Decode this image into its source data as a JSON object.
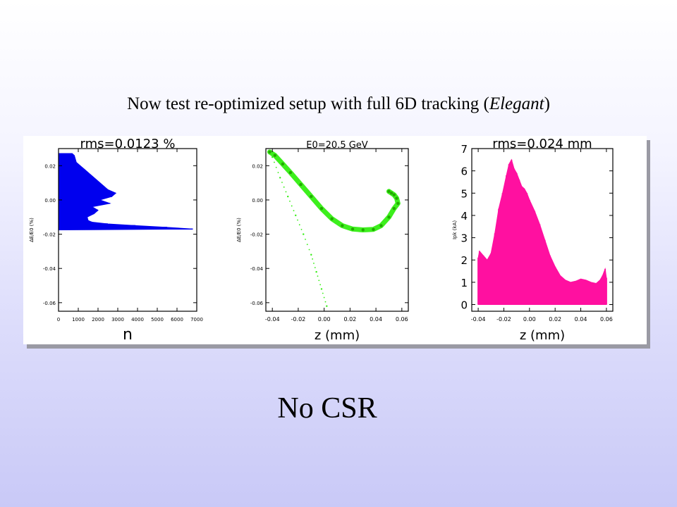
{
  "slide": {
    "title_prefix": "Now test re-optimized setup with full 6D tracking (",
    "title_italic": "Elegant",
    "title_suffix": ")",
    "caption": "No CSR"
  },
  "chart_data": [
    {
      "type": "area",
      "orientation": "horizontal-histogram",
      "title": "rms=0.0123  %",
      "xlabel": "n",
      "ylabel": "ΔE/E0 (%)",
      "xlim": [
        0,
        7000
      ],
      "ylim": [
        -0.065,
        0.03
      ],
      "x_ticks": [
        0,
        1000,
        2000,
        3000,
        4000,
        5000,
        6000,
        7000
      ],
      "y_ticks": [
        0.02,
        0.0,
        -0.02,
        -0.04,
        -0.06
      ],
      "y_tick_labels": [
        "0.02",
        "0.00",
        "-0.02",
        "-0.04",
        "-0.06"
      ],
      "color": "#0000ee",
      "series": [
        {
          "y": [
            0.027,
            0.026,
            0.024,
            0.022,
            0.02,
            0.018,
            0.016,
            0.014,
            0.012,
            0.01,
            0.008,
            0.006,
            0.004,
            0.002,
            0.0,
            -0.002,
            -0.004,
            -0.006,
            -0.008,
            -0.01,
            -0.012,
            -0.013,
            -0.014,
            -0.015,
            -0.016,
            -0.017,
            -0.0175
          ],
          "values": [
            700,
            800,
            850,
            900,
            1100,
            1300,
            1500,
            1700,
            1900,
            2100,
            2300,
            2500,
            2900,
            2700,
            2100,
            2600,
            1700,
            2000,
            1800,
            1450,
            1500,
            1700,
            2500,
            3900,
            5500,
            6800,
            0
          ]
        }
      ]
    },
    {
      "type": "scatter",
      "title": "E0=20.5  GeV",
      "xlabel": "z  (mm)",
      "ylabel": "ΔE/E0 (%)",
      "xlim": [
        -0.045,
        0.065
      ],
      "ylim": [
        -0.065,
        0.03
      ],
      "x_ticks": [
        -0.04,
        -0.02,
        0.0,
        0.02,
        0.04,
        0.06
      ],
      "x_tick_labels": [
        "-0.04",
        "-0.02",
        "0.00",
        "0.02",
        "0.04",
        "0.06"
      ],
      "y_ticks": [
        0.02,
        0.0,
        -0.02,
        -0.04,
        -0.06
      ],
      "y_tick_labels": [
        "0.02",
        "0.00",
        "-0.02",
        "-0.04",
        "-0.06"
      ],
      "color": "#33ee11",
      "series": [
        {
          "x": [
            -0.042,
            -0.038,
            -0.032,
            -0.026,
            -0.018,
            -0.01,
            -0.002,
            0.006,
            0.014,
            0.022,
            0.03,
            0.038,
            0.044,
            0.05,
            0.054,
            0.057,
            0.056,
            0.054,
            0.052,
            0.05
          ],
          "y": [
            0.028,
            0.026,
            0.021,
            0.016,
            0.009,
            0.002,
            -0.005,
            -0.011,
            -0.015,
            -0.017,
            -0.0175,
            -0.0172,
            -0.015,
            -0.01,
            -0.005,
            -0.002,
            0.001,
            0.003,
            0.004,
            0.005
          ]
        },
        {
          "x": [
            -0.04,
            -0.034,
            -0.028,
            -0.022,
            -0.016,
            -0.01,
            -0.006,
            -0.002,
            0.002
          ],
          "y": [
            0.025,
            0.013,
            0.002,
            -0.009,
            -0.02,
            -0.032,
            -0.042,
            -0.052,
            -0.062
          ]
        }
      ]
    },
    {
      "type": "area",
      "title": "rms=0.024  mm",
      "xlabel": "z  (mm)",
      "ylabel": "Ipk (kA)",
      "xlim": [
        -0.045,
        0.065
      ],
      "ylim": [
        -0.3,
        7.0
      ],
      "x_ticks": [
        -0.04,
        -0.02,
        0.0,
        0.02,
        0.04,
        0.06
      ],
      "x_tick_labels": [
        "-0.04",
        "-0.02",
        "0.00",
        "0.02",
        "0.04",
        "0.06"
      ],
      "y_ticks": [
        0,
        1,
        2,
        3,
        4,
        5,
        6,
        7
      ],
      "y_tick_labels": [
        "0",
        "1",
        "2",
        "3",
        "4",
        "5",
        "6",
        "7"
      ],
      "color": "#ff10a0",
      "series": [
        {
          "x": [
            -0.04,
            -0.039,
            -0.036,
            -0.033,
            -0.03,
            -0.027,
            -0.024,
            -0.021,
            -0.018,
            -0.016,
            -0.014,
            -0.012,
            -0.01,
            -0.008,
            -0.006,
            -0.004,
            -0.002,
            0.0,
            0.004,
            0.008,
            0.012,
            0.016,
            0.02,
            0.024,
            0.028,
            0.032,
            0.036,
            0.04,
            0.044,
            0.048,
            0.052,
            0.055,
            0.057,
            0.059,
            0.06
          ],
          "values": [
            2.1,
            2.4,
            2.2,
            2.0,
            2.3,
            3.2,
            4.3,
            5.0,
            5.8,
            6.3,
            6.5,
            6.1,
            5.9,
            5.6,
            5.3,
            5.2,
            5.0,
            4.7,
            4.2,
            3.6,
            2.9,
            2.2,
            1.7,
            1.3,
            1.1,
            1.0,
            1.05,
            1.15,
            1.1,
            1.0,
            0.95,
            1.1,
            1.3,
            1.6,
            1.2
          ]
        }
      ]
    }
  ]
}
